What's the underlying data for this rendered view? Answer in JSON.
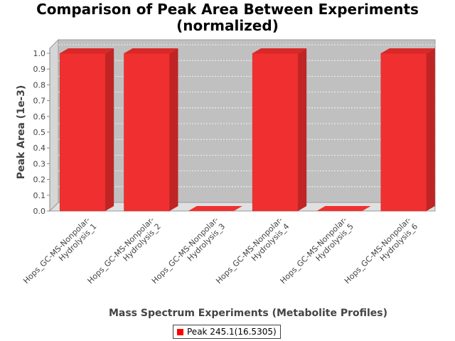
{
  "chart_data": {
    "type": "bar",
    "title_lines": [
      "Comparison of Peak Area Between Experiments",
      "(normalized)"
    ],
    "xlabel": "Mass Spectrum Experiments (Metabolite Profiles)",
    "ylabel": "Peak Area (1e-3)",
    "categories": [
      [
        "Hops_GC-MS-Nonpolar-",
        "Hydrolysis_1"
      ],
      [
        "Hops_GC-MS-Nonpolar-",
        "Hydrolysis_2"
      ],
      [
        "Hops_GC-MS-Nonpolar-",
        "Hydrolysis_3"
      ],
      [
        "Hops_GC-MS-Nonpolar-",
        "Hydrolysis_4"
      ],
      [
        "Hops_GC-MS-Nonpolar-",
        "Hydrolysis_5"
      ],
      [
        "Hops_GC-MS-Nonpolar-",
        "Hydrolysis_6"
      ]
    ],
    "series": [
      {
        "name": "Peak 245.1(16.5305)",
        "values": [
          1.0,
          1.0,
          0.0,
          1.0,
          0.0,
          1.0
        ],
        "color": "#ff0000"
      }
    ],
    "ylim": [
      0,
      1.0
    ],
    "yticks": [
      "0.0",
      "0.1",
      "0.2",
      "0.3",
      "0.4",
      "0.5",
      "0.6",
      "0.7",
      "0.8",
      "0.9",
      "1.0"
    ],
    "legend_position": "bottom",
    "grid": true,
    "plot_background": "#c0c0c0"
  }
}
